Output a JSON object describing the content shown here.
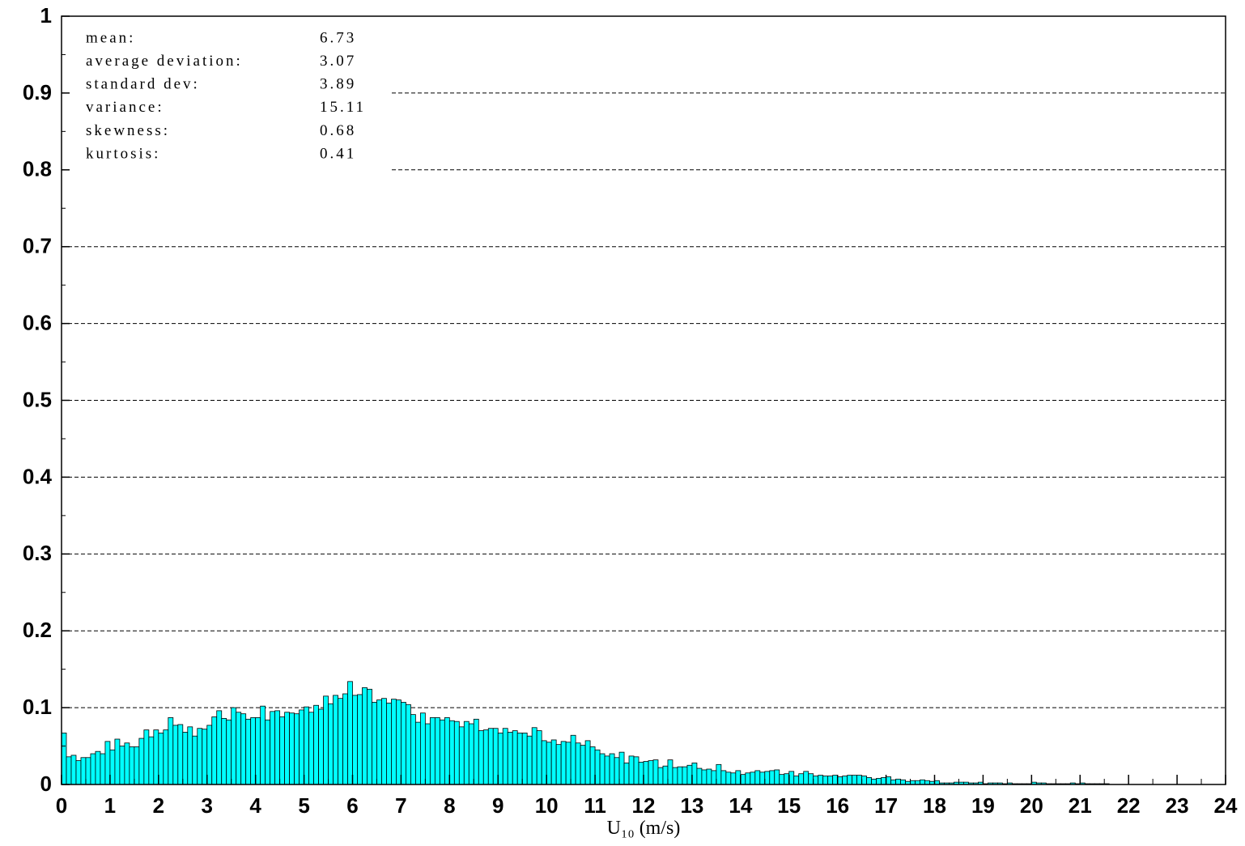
{
  "chart_data": {
    "type": "histogram",
    "xlabel": "U₁₀ (m/s)",
    "annotations": [
      {
        "label": "mean:",
        "value": 6.73
      },
      {
        "label": "average deviation:",
        "value": 3.07
      },
      {
        "label": "standard dev:",
        "value": 3.89
      },
      {
        "label": "variance:",
        "value": 15.11
      },
      {
        "label": "skewness:",
        "value": 0.68
      },
      {
        "label": "kurtosis:",
        "value": 0.41
      }
    ],
    "color": "#00ffff",
    "xlim": [
      0,
      24
    ],
    "xticks": [
      0,
      1,
      2,
      3,
      4,
      5,
      6,
      7,
      8,
      9,
      10,
      11,
      12,
      13,
      14,
      15,
      16,
      17,
      18,
      19,
      20,
      21,
      22,
      23,
      24
    ],
    "ylim": [
      0,
      1
    ],
    "yticks": [
      0,
      0.1,
      0.2,
      0.3,
      0.4,
      0.5,
      0.6,
      0.7,
      0.8,
      0.9,
      1
    ],
    "grid": true,
    "bins": [
      0,
      0.1,
      0.2,
      0.3,
      0.4,
      0.5,
      0.6,
      0.7,
      0.8,
      0.9,
      1,
      1.1,
      1.2,
      1.3,
      1.4,
      1.5,
      1.6,
      1.7,
      1.8,
      1.9,
      2,
      2.1,
      2.2,
      2.3,
      2.4,
      2.5,
      2.6,
      2.7,
      2.8,
      2.9,
      3,
      3.1,
      3.2,
      3.3,
      3.4,
      3.5,
      3.6,
      3.7,
      3.8,
      3.9,
      4,
      4.1,
      4.2,
      4.3,
      4.4,
      4.5,
      4.6,
      4.7,
      4.8,
      4.9,
      5,
      5.1,
      5.2,
      5.3,
      5.4,
      5.5,
      5.6,
      5.7,
      5.8,
      5.9,
      6,
      6.1,
      6.2,
      6.3,
      6.4,
      6.5,
      6.6,
      6.7,
      6.8,
      6.9,
      7,
      7.1,
      7.2,
      7.3,
      7.4,
      7.5,
      7.6,
      7.7,
      7.8,
      7.9,
      8,
      8.1,
      8.2,
      8.3,
      8.4,
      8.5,
      8.6,
      8.7,
      8.8,
      8.9,
      9,
      9.1,
      9.2,
      9.3,
      9.4,
      9.5,
      9.6,
      9.7,
      9.8,
      9.9,
      10,
      10.1,
      10.2,
      10.3,
      10.4,
      10.5,
      10.6,
      10.7,
      10.8,
      10.9,
      11,
      11.1,
      11.2,
      11.3,
      11.4,
      11.5,
      11.6,
      11.7,
      11.8,
      11.9,
      12,
      12.1,
      12.2,
      12.3,
      12.4,
      12.5,
      12.6,
      12.7,
      12.8,
      12.9,
      13,
      13.1,
      13.2,
      13.3,
      13.4,
      13.5,
      13.6,
      13.7,
      13.8,
      13.9,
      14,
      14.1,
      14.2,
      14.3,
      14.4,
      14.5,
      14.6,
      14.7,
      14.8,
      14.9,
      15,
      15.1,
      15.2,
      15.3,
      15.4,
      15.5,
      15.6,
      15.7,
      15.8,
      15.9,
      16,
      16.1,
      16.2,
      16.3,
      16.4,
      16.5,
      16.6,
      16.7,
      16.8,
      16.9,
      17,
      17.1,
      17.2,
      17.3,
      17.4,
      17.5,
      17.6,
      17.7,
      17.8,
      17.9,
      18,
      18.1,
      18.2,
      18.3,
      18.4,
      18.5,
      18.6,
      18.7,
      18.8,
      18.9,
      19,
      19.1,
      19.2,
      19.3,
      19.4,
      19.5,
      19.6,
      19.7,
      19.8,
      19.9,
      20,
      20.1,
      20.2,
      20.3,
      20.4,
      20.5,
      20.6,
      20.7,
      20.8,
      20.9,
      21,
      21.1,
      21.2,
      21.3,
      21.4,
      21.5,
      21.6,
      21.7,
      21.8,
      21.9,
      22
    ],
    "values": [
      0.067,
      0.036,
      0.038,
      0.031,
      0.035,
      0.035,
      0.04,
      0.043,
      0.04,
      0.056,
      0.045,
      0.059,
      0.05,
      0.054,
      0.049,
      0.049,
      0.06,
      0.071,
      0.062,
      0.071,
      0.067,
      0.071,
      0.087,
      0.077,
      0.078,
      0.068,
      0.075,
      0.063,
      0.073,
      0.072,
      0.077,
      0.088,
      0.096,
      0.086,
      0.084,
      0.1,
      0.094,
      0.092,
      0.085,
      0.087,
      0.087,
      0.102,
      0.084,
      0.095,
      0.096,
      0.088,
      0.094,
      0.093,
      0.092,
      0.097,
      0.101,
      0.094,
      0.103,
      0.098,
      0.115,
      0.105,
      0.116,
      0.112,
      0.118,
      0.134,
      0.116,
      0.117,
      0.126,
      0.124,
      0.107,
      0.11,
      0.112,
      0.106,
      0.111,
      0.11,
      0.107,
      0.104,
      0.091,
      0.081,
      0.093,
      0.079,
      0.087,
      0.087,
      0.084,
      0.087,
      0.083,
      0.082,
      0.075,
      0.082,
      0.079,
      0.085,
      0.07,
      0.071,
      0.073,
      0.073,
      0.067,
      0.073,
      0.068,
      0.07,
      0.067,
      0.067,
      0.063,
      0.074,
      0.07,
      0.057,
      0.055,
      0.058,
      0.052,
      0.056,
      0.055,
      0.064,
      0.054,
      0.051,
      0.057,
      0.049,
      0.045,
      0.04,
      0.037,
      0.04,
      0.035,
      0.042,
      0.028,
      0.037,
      0.036,
      0.029,
      0.03,
      0.031,
      0.032,
      0.022,
      0.024,
      0.032,
      0.022,
      0.023,
      0.023,
      0.025,
      0.028,
      0.021,
      0.019,
      0.02,
      0.018,
      0.026,
      0.018,
      0.016,
      0.015,
      0.018,
      0.013,
      0.015,
      0.016,
      0.018,
      0.016,
      0.017,
      0.018,
      0.019,
      0.013,
      0.014,
      0.017,
      0.011,
      0.014,
      0.017,
      0.014,
      0.011,
      0.012,
      0.011,
      0.011,
      0.012,
      0.01,
      0.011,
      0.012,
      0.012,
      0.012,
      0.011,
      0.009,
      0.007,
      0.008,
      0.009,
      0.01,
      0.006,
      0.007,
      0.006,
      0.004,
      0.005,
      0.005,
      0.006,
      0.005,
      0.004,
      0.005,
      0.002,
      0.002,
      0.002,
      0.003,
      0.003,
      0.003,
      0.002,
      0.002,
      0.003,
      0.001,
      0.002,
      0.002,
      0.002,
      0.001,
      0.002,
      0.001,
      0.001,
      0.001,
      0.001,
      0.003,
      0.002,
      0.002,
      0.001,
      0.001,
      0.001,
      0.001,
      0.001,
      0.002,
      0.001,
      0.002,
      0.001,
      0.001,
      0.001,
      0.001,
      0.001,
      0,
      0,
      0,
      0
    ]
  }
}
